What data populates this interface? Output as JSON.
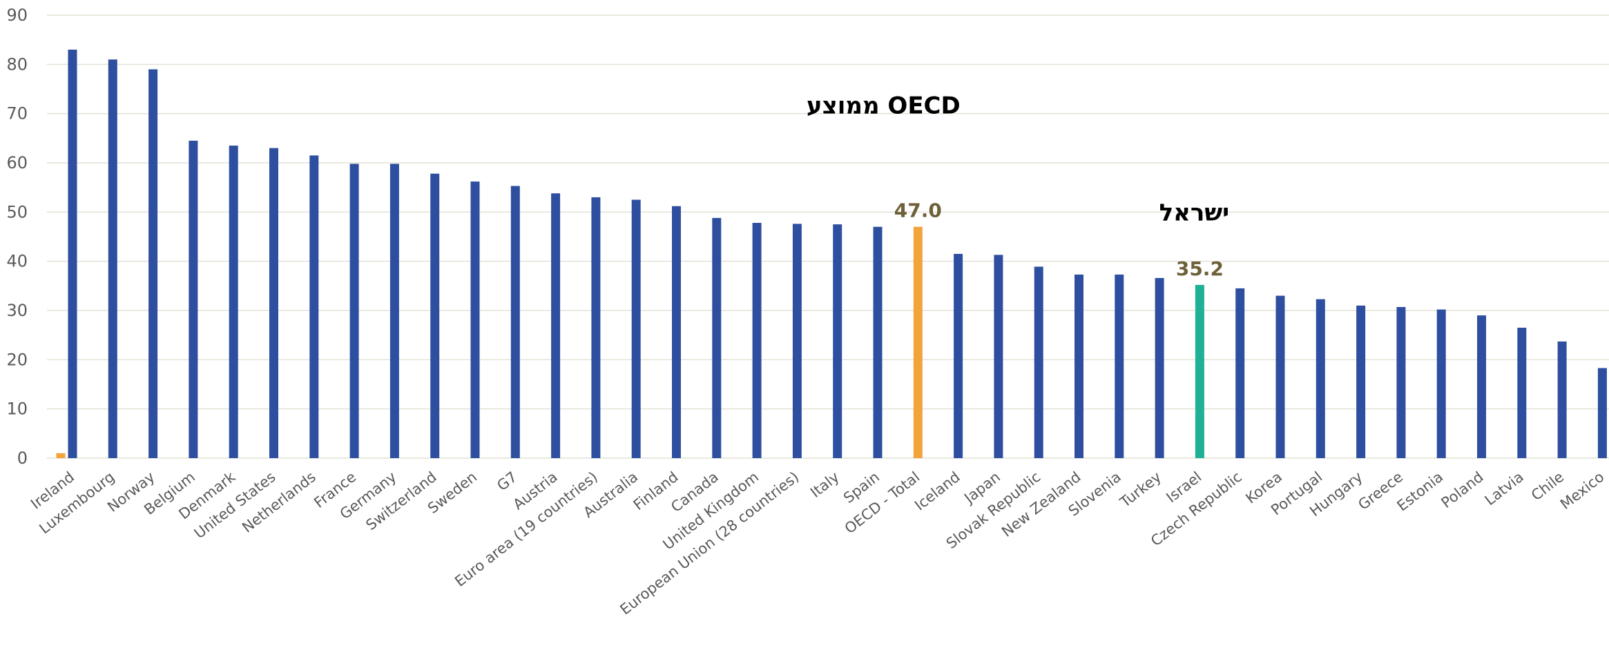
{
  "chart_data": {
    "type": "bar",
    "title": "",
    "xlabel": "",
    "ylabel": "",
    "ylim": [
      0,
      90
    ],
    "yticks": [
      0,
      10,
      20,
      30,
      40,
      50,
      60,
      70,
      80,
      90
    ],
    "grid": true,
    "legend": "none",
    "categories": [
      "Ireland",
      "Luxembourg",
      "Norway",
      "Belgium",
      "Denmark",
      "United States",
      "Netherlands",
      "France",
      "Germany",
      "Switzerland",
      "Sweden",
      "G7",
      "Austria",
      "Euro area (19 countries)",
      "Australia",
      "Finland",
      "Canada",
      "United Kingdom",
      "European Union (28 countries)",
      "Italy",
      "Spain",
      "OECD - Total",
      "Iceland",
      "Japan",
      "Slovak Republic",
      "New Zealand",
      "Slovenia",
      "Turkey",
      "Israel",
      "Czech Republic",
      "Korea",
      "Portugal",
      "Hungary",
      "Greece",
      "Estonia",
      "Poland",
      "Latvia",
      "Chile",
      "Mexico"
    ],
    "series": [
      {
        "values": [
          83,
          81,
          79,
          64.5,
          63.5,
          63,
          61.5,
          59.8,
          59.8,
          57.8,
          56.2,
          55.3,
          53.8,
          53,
          52.5,
          51.2,
          48.8,
          47.8,
          47.6,
          47.5,
          47,
          47.0,
          41.5,
          41.3,
          38.9,
          37.3,
          37.3,
          36.6,
          35.2,
          34.5,
          33,
          32.3,
          31,
          30.7,
          30.2,
          29,
          26.5,
          23.7,
          18.3
        ]
      },
      {
        "values": [
          1,
          null,
          null,
          null,
          null,
          null,
          null,
          null,
          null,
          null,
          null,
          null,
          null,
          null,
          null,
          null,
          null,
          null,
          null,
          null,
          null,
          null,
          null,
          null,
          null,
          null,
          null,
          null,
          null,
          null,
          null,
          null,
          null,
          null,
          null,
          null,
          null,
          null,
          null
        ]
      }
    ],
    "colors": {
      "default": "#2e4f9f",
      "oecd": "#f2a33a",
      "israel": "#1fb196",
      "ireland_secondary": "#f2a33a",
      "grid": "#e2e2d6",
      "axis_text": "#595959",
      "value_label": "#6e6038"
    },
    "highlights": {
      "OECD - Total": "oecd",
      "Israel": "israel"
    },
    "data_labels": [
      {
        "category": "OECD - Total",
        "text": "47.0"
      },
      {
        "category": "Israel",
        "text": "35.2"
      }
    ],
    "annotations": [
      {
        "text": "ממוצע OECD",
        "near": "OECD - Total"
      },
      {
        "text": "ישראל",
        "near": "Israel"
      }
    ]
  }
}
